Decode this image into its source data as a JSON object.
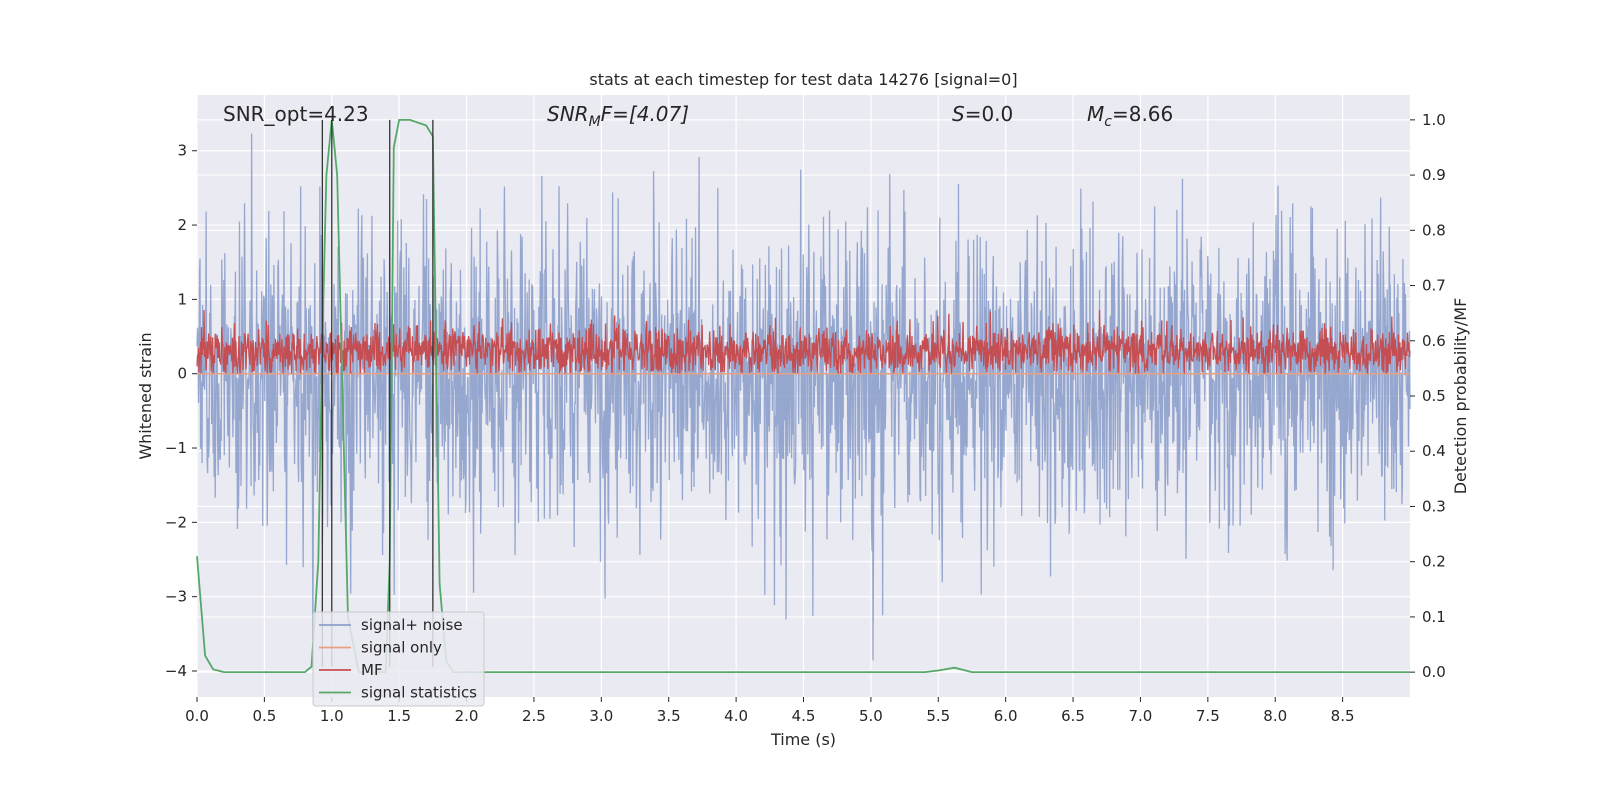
{
  "chart_data": {
    "type": "line",
    "title": "stats at each timestep for test data 14276 [signal=0]",
    "xlabel": "Time (s)",
    "ylabel": "Whitened strain",
    "ylabel_right": "Detection probability/MF",
    "xlim": [
      0.0,
      9.0
    ],
    "ylim": [
      -4.35,
      3.75
    ],
    "ylim_right": [
      -0.045,
      1.045
    ],
    "x_ticks": [
      0.0,
      0.5,
      1.0,
      1.5,
      2.0,
      2.5,
      3.0,
      3.5,
      4.0,
      4.5,
      5.0,
      5.5,
      6.0,
      6.5,
      7.0,
      7.5,
      8.0,
      8.5
    ],
    "x_tick_labels": [
      "0.0",
      "0.5",
      "1.0",
      "1.5",
      "2.0",
      "2.5",
      "3.0",
      "3.5",
      "4.0",
      "4.5",
      "5.0",
      "5.5",
      "6.0",
      "6.5",
      "7.0",
      "7.5",
      "8.0",
      "8.5"
    ],
    "y_ticks": [
      3,
      2,
      1,
      0,
      -1,
      -2,
      -3,
      -4
    ],
    "y_tick_labels": [
      "3",
      "2",
      "1",
      "0",
      "−1",
      "−2",
      "−3",
      "−4"
    ],
    "y_right_ticks": [
      1.0,
      0.9,
      0.8,
      0.7,
      0.6,
      0.5,
      0.4,
      0.3,
      0.2,
      0.1,
      0.0
    ],
    "y_right_tick_labels": [
      "1.0",
      "0.9",
      "0.8",
      "0.7",
      "0.6",
      "0.5",
      "0.4",
      "0.3",
      "0.2",
      "0.1",
      "0.0"
    ],
    "grid": true,
    "legend_position": "lower-left",
    "annotations": {
      "snr_opt": "SNR_opt=4.23",
      "snr_mf_main": "SNR",
      "snr_mf_sub": "M",
      "snr_mf_rest": "F=[4.07]",
      "s_main": "S",
      "s_rest": "=0.0",
      "mc_main": "M",
      "mc_sub": "c",
      "mc_rest": "=8.66"
    },
    "vertical_markers_x": [
      0.93,
      1.0,
      1.43,
      1.75
    ],
    "series": [
      {
        "name": "signal+ noise",
        "color": "#8da0cb",
        "axis": "left",
        "style": "noise",
        "amplitude": 1.0,
        "max": 3.3,
        "min": -4.0
      },
      {
        "name": "signal only",
        "color": "#e8a080",
        "axis": "left",
        "style": "flat",
        "value": 0.0
      },
      {
        "name": "MF",
        "color": "#c44e52",
        "axis": "left",
        "style": "mf",
        "baseline": 0.0,
        "mean": 0.3,
        "max": 0.9
      },
      {
        "name": "signal statistics",
        "color": "#55a868",
        "axis": "right",
        "style": "line",
        "x": [
          0.0,
          0.06,
          0.12,
          0.2,
          0.3,
          0.5,
          0.8,
          0.85,
          0.9,
          0.93,
          0.96,
          1.0,
          1.04,
          1.08,
          1.12,
          1.2,
          1.4,
          1.43,
          1.46,
          1.5,
          1.58,
          1.7,
          1.75,
          1.8,
          1.85,
          1.9,
          2.0,
          3.0,
          4.0,
          5.0,
          5.4,
          5.5,
          5.62,
          5.75,
          5.9,
          7.0,
          8.0,
          9.0
        ],
        "y": [
          0.21,
          0.03,
          0.005,
          0.0,
          0.0,
          0.0,
          0.0,
          0.01,
          0.2,
          0.6,
          0.9,
          1.0,
          0.9,
          0.5,
          0.1,
          0.0,
          0.0,
          0.2,
          0.95,
          1.0,
          1.0,
          0.99,
          0.97,
          0.16,
          0.02,
          0.0,
          0.0,
          0.0,
          0.0,
          0.0,
          0.0,
          0.003,
          0.008,
          0.0,
          0.0,
          0.0,
          0.0,
          0.0
        ]
      }
    ]
  }
}
